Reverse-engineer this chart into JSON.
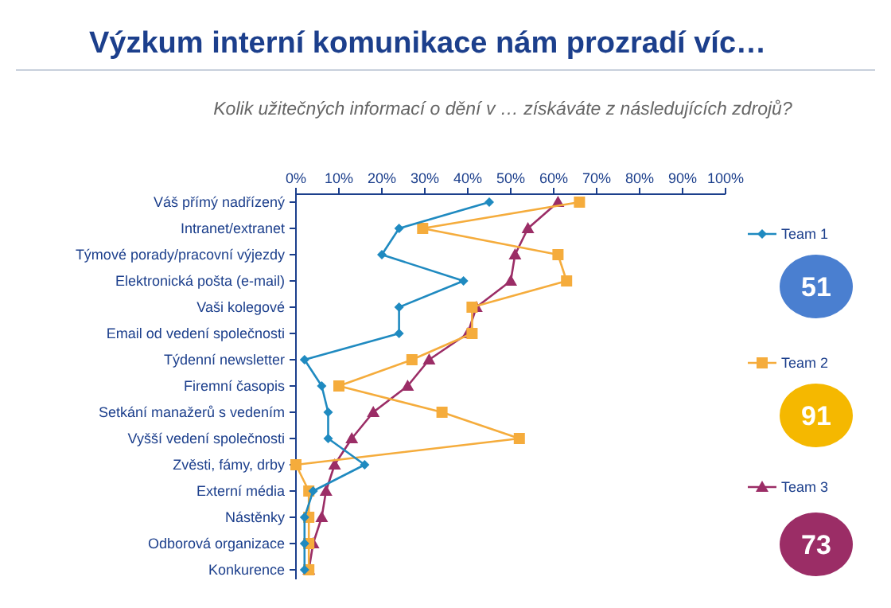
{
  "chart_data": {
    "type": "line",
    "orientation": "horizontal",
    "title": "Výzkum interní komunikace nám prozradí víc…",
    "subtitle": "Kolik užitečných informací o dění v … získáváte z následujících zdrojů?",
    "categories": [
      "Váš přímý nadřízený",
      "Intranet/extranet",
      "Týmové porady/pracovní výjezdy",
      "Elektronická pošta (e-mail)",
      "Vaši kolegové",
      "Email od vedení společnosti",
      "Týdenní newsletter",
      "Firemní časopis",
      "Setkání manažerů s vedením",
      "Vyšší vedení společnosti",
      "Zvěsti, fámy, drby",
      "Externí média",
      "Nástěnky",
      "Odborová organizace",
      "Konkurence"
    ],
    "series": [
      {
        "name": "Team 1",
        "color": "#1f8ac0",
        "marker": "diamond",
        "values": [
          45,
          24,
          20,
          39,
          24,
          24,
          2,
          6,
          7.5,
          7.5,
          16,
          4,
          2,
          2,
          2
        ]
      },
      {
        "name": "Team 2",
        "color": "#f5ac3c",
        "marker": "square",
        "values": [
          66,
          29.5,
          61,
          63,
          41,
          41,
          27,
          10,
          34,
          52,
          0,
          3,
          3,
          3,
          3
        ]
      },
      {
        "name": "Team 3",
        "color": "#9b2d66",
        "marker": "triangle",
        "values": [
          61,
          54,
          51,
          50,
          42,
          40,
          31,
          26,
          18,
          13,
          9,
          7,
          6,
          4,
          3
        ]
      }
    ],
    "xlim": [
      0,
      100
    ],
    "xticks": [
      {
        "value": 0,
        "label": "0%"
      },
      {
        "value": 10,
        "label": "10%"
      },
      {
        "value": 20,
        "label": "20%"
      },
      {
        "value": 30,
        "label": "30%"
      },
      {
        "value": 40,
        "label": "40%"
      },
      {
        "value": 50,
        "label": "50%"
      },
      {
        "value": 60,
        "label": "60%"
      },
      {
        "value": 70,
        "label": "70%"
      },
      {
        "value": 80,
        "label": "80%"
      },
      {
        "value": 90,
        "label": "90%"
      },
      {
        "value": 100,
        "label": "100%"
      }
    ],
    "legend": "right",
    "grid": false,
    "annotations": [
      "51",
      "91",
      "73"
    ]
  }
}
